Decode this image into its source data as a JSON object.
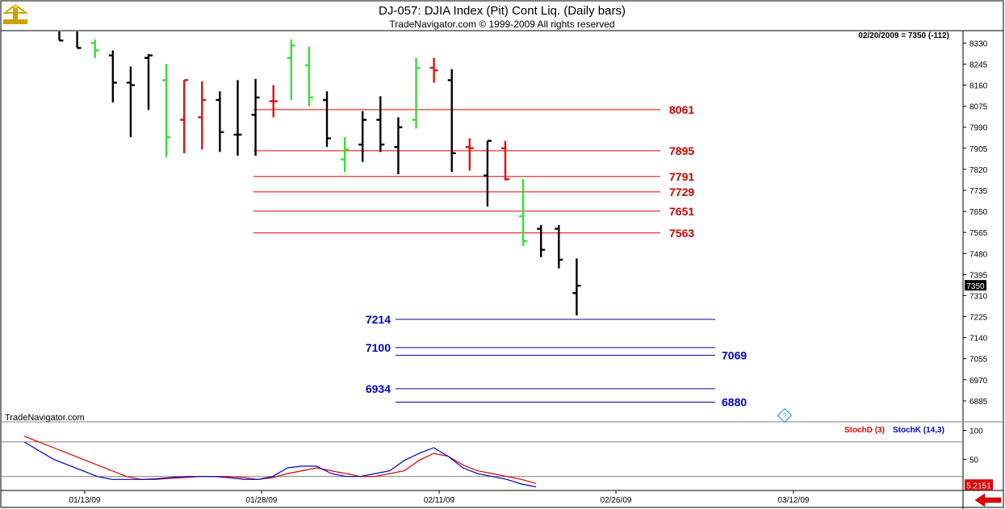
{
  "header": {
    "title": "DJ-057:  DJIA Index (Pit) Cont Liq.  (Daily bars)",
    "copyright": "TradeNavigator.com © 1999-2009 All rights reserved",
    "quote": "02/20/2009 = 7350 (-112)",
    "watermark": "TradeNavigator.com"
  },
  "chart_data": [
    {
      "type": "ohlc",
      "ylim": [
        6800,
        8380
      ],
      "y_ticks": [
        8330,
        8245,
        8160,
        8075,
        7990,
        7905,
        7820,
        7735,
        7650,
        7565,
        7480,
        7395,
        7310,
        7225,
        7140,
        7055,
        6970,
        6885
      ],
      "last_price_label": "7350",
      "x_tick_labels": [
        "01/13/09",
        "01/28/09",
        "02/11/09",
        "02/26/09",
        "03/12/09"
      ],
      "bars": [
        {
          "o": 8390,
          "h": 8390,
          "l": 8340,
          "c": 8340,
          "color": "black"
        },
        {
          "o": 8390,
          "h": 8390,
          "l": 8310,
          "c": 8310,
          "color": "black"
        },
        {
          "o": 8330,
          "h": 8345,
          "l": 8270,
          "c": 8300,
          "color": "green"
        },
        {
          "o": 8280,
          "h": 8300,
          "l": 8090,
          "c": 8170,
          "color": "black"
        },
        {
          "o": 8170,
          "h": 8235,
          "l": 7950,
          "c": 8160,
          "color": "black"
        },
        {
          "o": 8270,
          "h": 8285,
          "l": 8060,
          "c": 8280,
          "color": "black"
        },
        {
          "o": 8180,
          "h": 8245,
          "l": 7870,
          "c": 7950,
          "color": "green"
        },
        {
          "o": 8020,
          "h": 8180,
          "l": 7885,
          "c": 8180,
          "color": "red"
        },
        {
          "o": 8030,
          "h": 8175,
          "l": 7900,
          "c": 8100,
          "color": "red"
        },
        {
          "o": 8100,
          "h": 8135,
          "l": 7890,
          "c": 7970,
          "color": "black"
        },
        {
          "o": 7960,
          "h": 8180,
          "l": 7875,
          "c": 7960,
          "color": "black"
        },
        {
          "o": 8040,
          "h": 8185,
          "l": 7875,
          "c": 8110,
          "color": "black"
        },
        {
          "o": 8095,
          "h": 8160,
          "l": 8030,
          "c": 8095,
          "color": "red"
        },
        {
          "o": 8270,
          "h": 8345,
          "l": 8100,
          "c": 8320,
          "color": "green"
        },
        {
          "o": 8240,
          "h": 8315,
          "l": 8075,
          "c": 8110,
          "color": "green"
        },
        {
          "o": 8100,
          "h": 8135,
          "l": 7910,
          "c": 7945,
          "color": "black"
        },
        {
          "o": 7860,
          "h": 7950,
          "l": 7810,
          "c": 7900,
          "color": "green"
        },
        {
          "o": 7920,
          "h": 8055,
          "l": 7850,
          "c": 8020,
          "color": "black"
        },
        {
          "o": 8020,
          "h": 8115,
          "l": 7890,
          "c": 7920,
          "color": "black"
        },
        {
          "o": 7910,
          "h": 8030,
          "l": 7800,
          "c": 7990,
          "color": "black"
        },
        {
          "o": 8020,
          "h": 8270,
          "l": 7985,
          "c": 8230,
          "color": "green"
        },
        {
          "o": 8230,
          "h": 8270,
          "l": 8170,
          "c": 8220,
          "color": "red"
        },
        {
          "o": 8180,
          "h": 8225,
          "l": 7810,
          "c": 7885,
          "color": "black"
        },
        {
          "o": 7910,
          "h": 7945,
          "l": 7815,
          "c": 7905,
          "color": "red"
        },
        {
          "o": 7795,
          "h": 7935,
          "l": 7670,
          "c": 7935,
          "color": "black"
        },
        {
          "o": 7905,
          "h": 7935,
          "l": 7775,
          "c": 7780,
          "color": "red"
        },
        {
          "o": 7630,
          "h": 7780,
          "l": 7510,
          "c": 7530,
          "color": "green"
        },
        {
          "o": 7580,
          "h": 7595,
          "l": 7465,
          "c": 7495,
          "color": "black"
        },
        {
          "o": 7580,
          "h": 7595,
          "l": 7420,
          "c": 7455,
          "color": "black"
        },
        {
          "o": 7320,
          "h": 7460,
          "l": 7230,
          "c": 7350,
          "color": "black"
        }
      ],
      "resistance_lines": [
        8061,
        7895,
        7791,
        7729,
        7651,
        7563
      ],
      "support_lines": [
        7214,
        7100,
        7069,
        6934,
        6880
      ],
      "line_labels": {
        "r8061": "8061",
        "r7895": "7895",
        "r7791": "7791",
        "r7729": "7729",
        "r7651": "7651",
        "r7563": "7563",
        "s7214": "7214",
        "s7100": "7100",
        "s7069": "7069",
        "s6934": "6934",
        "s6880": "6880"
      },
      "colors": {
        "up_bar": "#33e033",
        "down_bar": "#e01010",
        "neutral_bar": "#000000",
        "resistance": "#e00000",
        "support": "#0000b0"
      }
    },
    {
      "type": "line",
      "indicator": "stochastic",
      "ylim": [
        0,
        105
      ],
      "y_ticks": [
        100,
        50
      ],
      "last_value_label": "5.2151",
      "legend": [
        "StochD (3)",
        "StochK (14,3)"
      ],
      "series": [
        {
          "name": "StochD (3)",
          "color": "#e00000",
          "values": [
            90,
            80,
            70,
            60,
            50,
            40,
            30,
            20,
            15,
            15,
            17,
            18,
            20,
            20,
            20,
            18,
            15,
            18,
            25,
            30,
            35,
            30,
            25,
            20,
            20,
            25,
            30,
            48,
            60,
            55,
            40,
            30,
            25,
            20,
            15,
            8
          ]
        },
        {
          "name": "StochK (14,3)",
          "color": "#0000c0",
          "values": [
            80,
            65,
            50,
            40,
            30,
            20,
            15,
            15,
            15,
            16,
            18,
            20,
            20,
            20,
            18,
            15,
            15,
            20,
            35,
            38,
            38,
            25,
            20,
            20,
            25,
            30,
            48,
            60,
            70,
            55,
            35,
            25,
            20,
            15,
            7,
            2
          ]
        }
      ]
    }
  ],
  "theme": {
    "frame": "#000000",
    "separator": "#888888",
    "label_red": "#cc0000",
    "label_blue": "#0000cc",
    "tag_red": "#e00000",
    "help_icon": "#33aadd",
    "logo": "#d0a000"
  },
  "icons": [
    "logo-icon",
    "help-icon",
    "scroll-arrow-icon"
  ]
}
